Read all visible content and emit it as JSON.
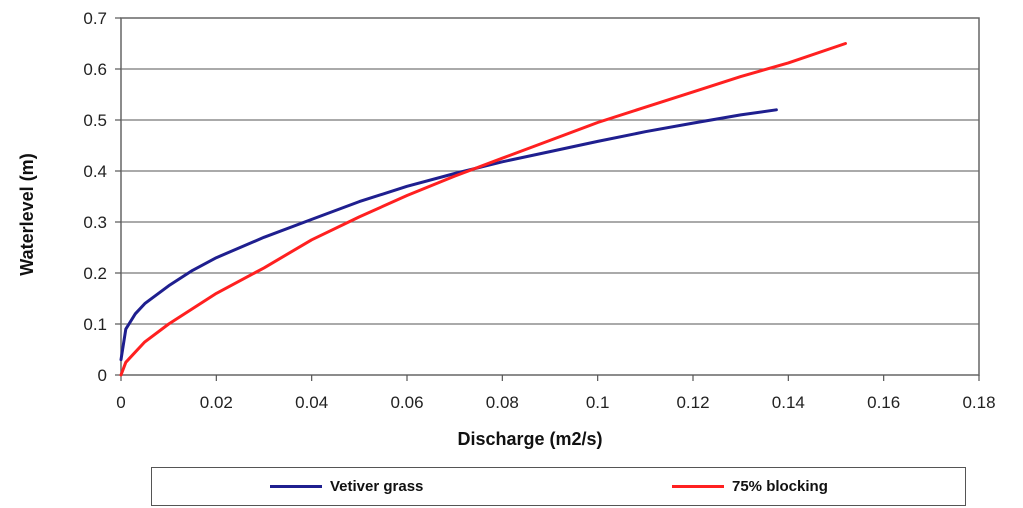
{
  "chart_data": {
    "type": "line",
    "title": "",
    "xlabel": "Discharge (m2/s)",
    "ylabel": "Waterlevel (m)",
    "xlim": [
      0,
      0.18
    ],
    "ylim": [
      0,
      0.7
    ],
    "x_ticks": [
      "0",
      "0.02",
      "0.04",
      "0.06",
      "0.08",
      "0.1",
      "0.12",
      "0.14",
      "0.16",
      "0.18"
    ],
    "y_ticks": [
      "0",
      "0.1",
      "0.2",
      "0.3",
      "0.4",
      "0.5",
      "0.6",
      "0.7"
    ],
    "grid": "horizontal",
    "legend_position": "bottom",
    "series": [
      {
        "name": "Vetiver grass",
        "color": "#1f1f8f",
        "x": [
          0,
          0.001,
          0.003,
          0.005,
          0.01,
          0.015,
          0.02,
          0.03,
          0.04,
          0.05,
          0.06,
          0.07,
          0.08,
          0.09,
          0.1,
          0.11,
          0.12,
          0.13,
          0.1375
        ],
        "y": [
          0.03,
          0.09,
          0.12,
          0.14,
          0.175,
          0.205,
          0.23,
          0.27,
          0.305,
          0.34,
          0.37,
          0.395,
          0.418,
          0.438,
          0.458,
          0.477,
          0.494,
          0.51,
          0.52
        ]
      },
      {
        "name": "75% blocking",
        "color": "#ff2020",
        "x": [
          0,
          0.001,
          0.005,
          0.01,
          0.02,
          0.03,
          0.04,
          0.05,
          0.06,
          0.07,
          0.08,
          0.09,
          0.1,
          0.11,
          0.12,
          0.13,
          0.14,
          0.152
        ],
        "y": [
          0,
          0.025,
          0.065,
          0.1,
          0.16,
          0.21,
          0.265,
          0.31,
          0.352,
          0.39,
          0.425,
          0.46,
          0.495,
          0.525,
          0.555,
          0.585,
          0.612,
          0.65
        ]
      }
    ]
  }
}
